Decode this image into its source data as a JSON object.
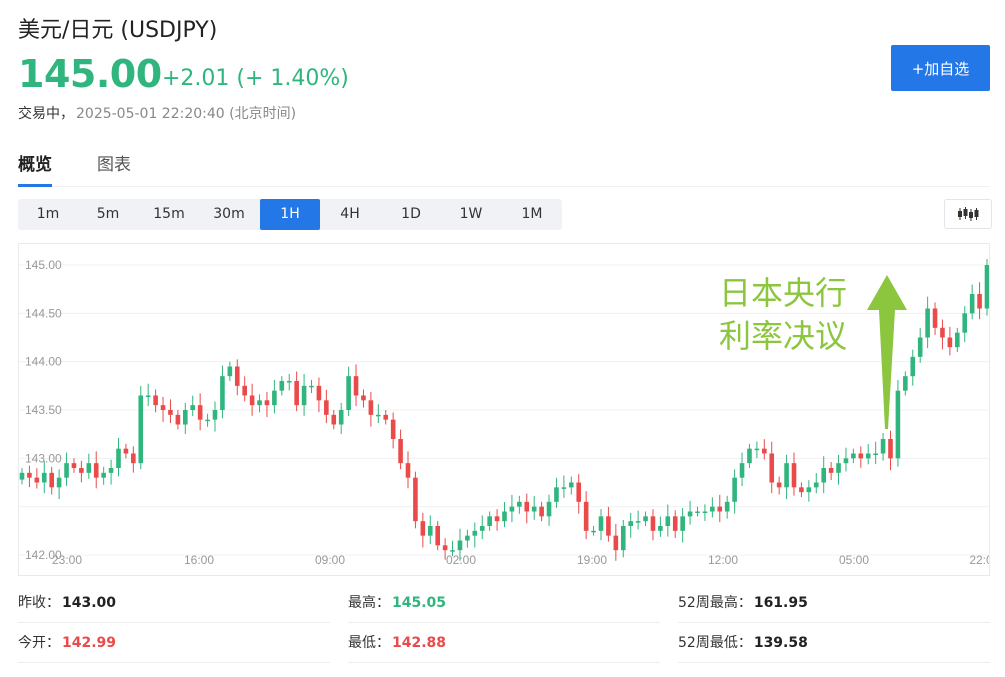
{
  "header": {
    "title": "美元/日元  (USDJPY)",
    "price": "145.00",
    "change": "+2.01 (+ 1.40%)",
    "status": "交易中，",
    "timestamp": "2025-05-01 22:20:40  (北京时间)",
    "add_button": "+加自选"
  },
  "tabs": [
    {
      "label": "概览",
      "active": true
    },
    {
      "label": "图表",
      "active": false
    }
  ],
  "intervals": [
    "1m",
    "5m",
    "15m",
    "30m",
    "1H",
    "4H",
    "1D",
    "1W",
    "1M"
  ],
  "active_interval": "1H",
  "chart_type_icon": "candlestick-icon",
  "colors": {
    "up": "#2fb57d",
    "down": "#ea4a4a",
    "accent": "#2477e6",
    "annotation": "#8cc63f"
  },
  "annotation": {
    "line1": "日本央行",
    "line2": "利率决议"
  },
  "stats": [
    {
      "label": "昨收：",
      "value": "143.00",
      "tone": "neutral"
    },
    {
      "label": "最高：",
      "value": "145.05",
      "tone": "up"
    },
    {
      "label": "52周最高：",
      "value": "161.95",
      "tone": "neutral"
    },
    {
      "label": "今开：",
      "value": "142.99",
      "tone": "down"
    },
    {
      "label": "最低：",
      "value": "142.88",
      "tone": "down"
    },
    {
      "label": "52周最低：",
      "value": "139.58",
      "tone": "neutral"
    }
  ],
  "chart_data": {
    "type": "candlestick",
    "y_ticks": [
      "145.00",
      "144.50",
      "144.00",
      "143.50",
      "143.00",
      "142.00"
    ],
    "x_ticks": [
      "23:00",
      "16:00",
      "09:00",
      "02:00",
      "19:00",
      "12:00",
      "05:00",
      "22:0"
    ],
    "ylim": [
      141.95,
      145.2
    ],
    "grid": true,
    "closes": [
      142.85,
      142.8,
      142.75,
      142.85,
      142.7,
      142.8,
      142.95,
      142.9,
      142.85,
      142.95,
      142.8,
      142.85,
      142.9,
      143.1,
      143.05,
      142.95,
      143.65,
      143.65,
      143.55,
      143.5,
      143.45,
      143.35,
      143.5,
      143.55,
      143.4,
      143.4,
      143.5,
      143.85,
      143.95,
      143.75,
      143.65,
      143.55,
      143.6,
      143.55,
      143.7,
      143.8,
      143.8,
      143.55,
      143.75,
      143.75,
      143.6,
      143.45,
      143.35,
      143.5,
      143.85,
      143.65,
      143.6,
      143.45,
      143.45,
      143.4,
      143.2,
      142.95,
      142.8,
      142.35,
      142.2,
      142.3,
      142.1,
      142.05,
      142.05,
      142.15,
      142.2,
      142.25,
      142.3,
      142.4,
      142.35,
      142.45,
      142.5,
      142.55,
      142.45,
      142.5,
      142.4,
      142.55,
      142.7,
      142.7,
      142.75,
      142.55,
      142.25,
      142.25,
      142.4,
      142.2,
      142.05,
      142.3,
      142.35,
      142.35,
      142.4,
      142.25,
      142.3,
      142.4,
      142.25,
      142.4,
      142.45,
      142.45,
      142.45,
      142.5,
      142.45,
      142.55,
      142.8,
      142.95,
      143.1,
      143.1,
      143.05,
      142.75,
      142.7,
      142.95,
      142.7,
      142.65,
      142.7,
      142.75,
      142.9,
      142.85,
      142.95,
      143.0,
      143.05,
      143.0,
      143.05,
      143.05,
      143.2,
      143.0,
      143.7,
      143.85,
      144.05,
      144.25,
      144.55,
      144.35,
      144.25,
      144.15,
      144.3,
      144.5,
      144.7,
      144.55,
      145.0
    ]
  }
}
